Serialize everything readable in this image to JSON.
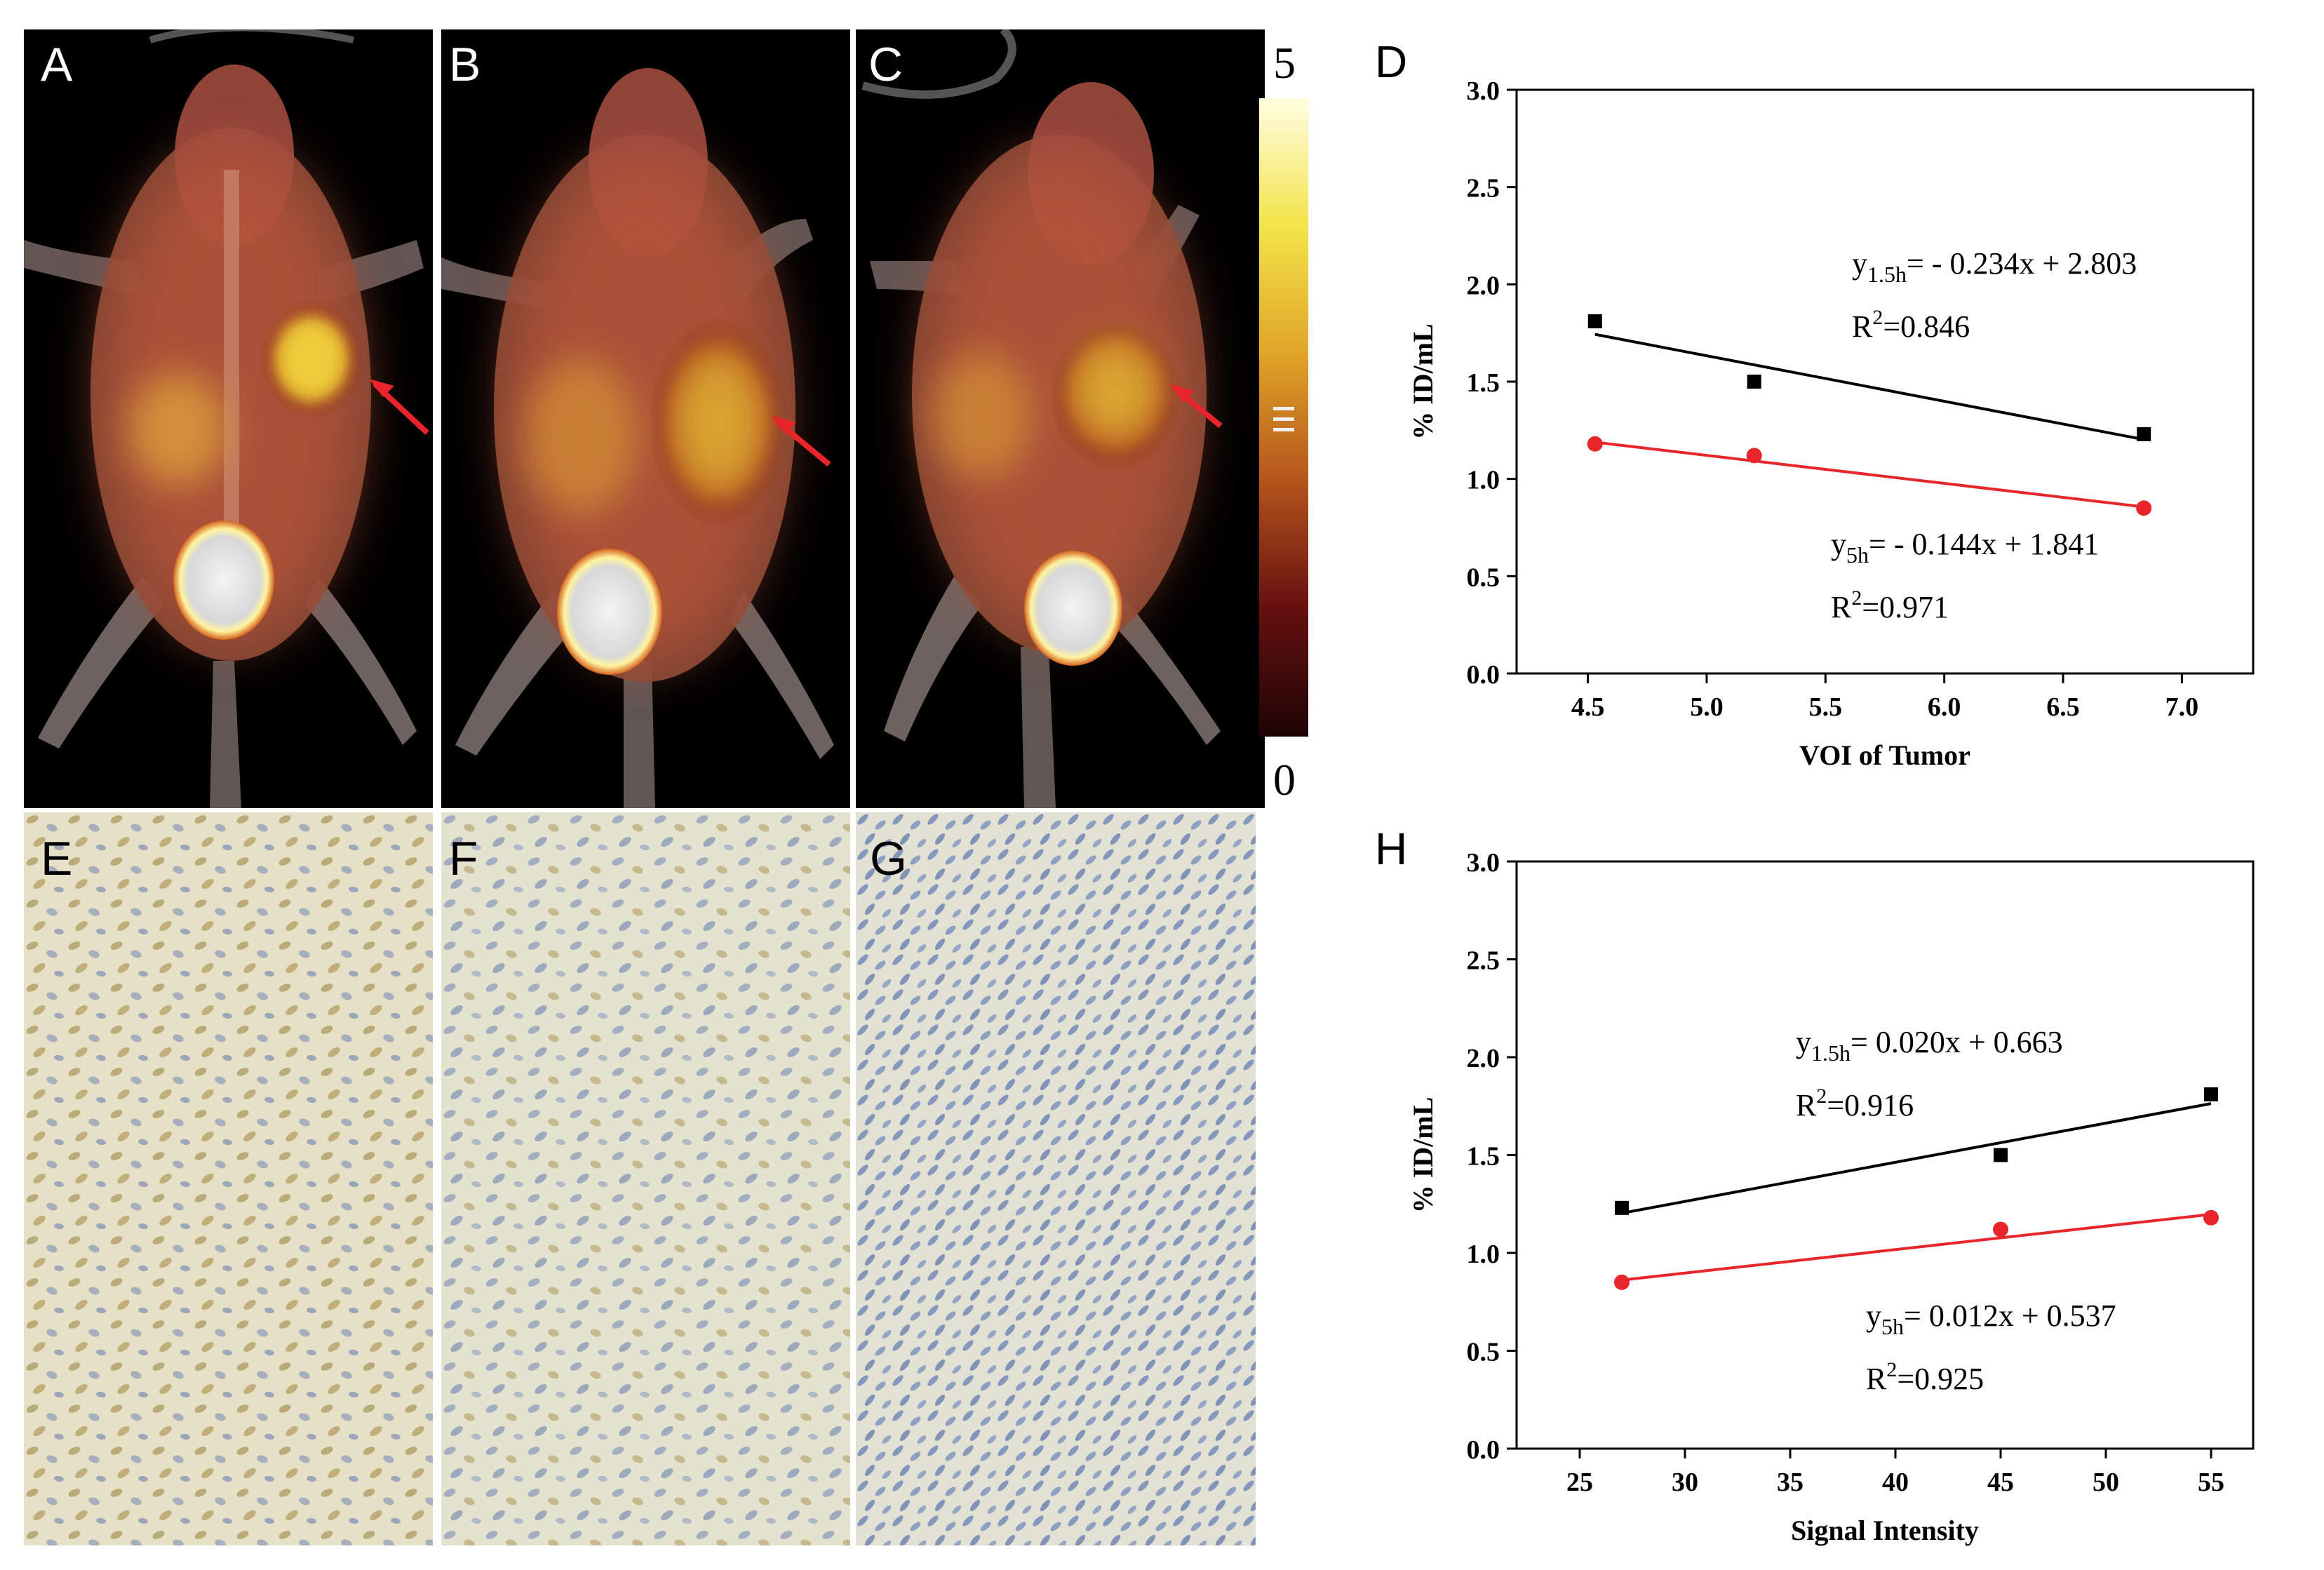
{
  "figure": {
    "panels": {
      "A": {
        "label": "A",
        "type": "PET/CT image",
        "arrow_color": "#e8252b"
      },
      "B": {
        "label": "B",
        "type": "PET/CT image",
        "arrow_color": "#e8252b"
      },
      "C": {
        "label": "C",
        "type": "PET/CT image",
        "arrow_color": "#e8252b"
      },
      "E": {
        "label": "E",
        "type": "immunohistochemistry micrograph"
      },
      "F": {
        "label": "F",
        "type": "immunohistochemistry micrograph"
      },
      "G": {
        "label": "G",
        "type": "immunohistochemistry micrograph"
      }
    },
    "colorbar": {
      "max_label": "5",
      "min_label": "0",
      "colors": [
        "#fffde0",
        "#f3e44a",
        "#e0a428",
        "#b4541b",
        "#651010",
        "#1e0404"
      ]
    }
  },
  "chart_data": [
    {
      "panel": "D",
      "label": "D",
      "type": "scatter",
      "xlabel": "VOI of Tumor",
      "ylabel": "% ID/mL",
      "xlim": [
        4.2,
        7.3
      ],
      "ylim": [
        0.0,
        3.0
      ],
      "xticks": [
        "4.5",
        "5.0",
        "5.5",
        "6.0",
        "6.5",
        "7.0"
      ],
      "yticks": [
        "0.0",
        "0.5",
        "1.0",
        "1.5",
        "2.0",
        "2.5",
        "3.0"
      ],
      "series": [
        {
          "key": "1.5h",
          "color": "#000000",
          "marker": "square",
          "points": [
            {
              "x": 4.53,
              "y": 1.81
            },
            {
              "x": 5.2,
              "y": 1.5
            },
            {
              "x": 6.84,
              "y": 1.23
            }
          ],
          "fit": {
            "slope": -0.234,
            "intercept": 2.803
          },
          "equation": {
            "y": "y",
            "sub": "1.5h",
            "rhs": "= - 0.234x + 2.803",
            "r2_main": "R",
            "r2_sup": "2",
            "r2_value": "=0.846"
          }
        },
        {
          "key": "5h",
          "color": "#e8252b",
          "marker": "circle",
          "points": [
            {
              "x": 4.53,
              "y": 1.18
            },
            {
              "x": 5.2,
              "y": 1.12
            },
            {
              "x": 6.84,
              "y": 0.85
            }
          ],
          "fit": {
            "slope": -0.144,
            "intercept": 1.841
          },
          "equation": {
            "y": "y",
            "sub": "5h",
            "rhs": "= - 0.144x + 1.841",
            "r2_main": "R",
            "r2_sup": "2",
            "r2_value": "=0.971"
          }
        }
      ]
    },
    {
      "panel": "H",
      "label": "H",
      "type": "scatter",
      "xlabel": "Signal Intensity",
      "ylabel": "% ID/mL",
      "xlim": [
        22,
        57
      ],
      "ylim": [
        0.0,
        3.0
      ],
      "xticks": [
        "25",
        "30",
        "35",
        "40",
        "45",
        "50",
        "55"
      ],
      "yticks": [
        "0.0",
        "0.5",
        "1.0",
        "1.5",
        "2.0",
        "2.5",
        "3.0"
      ],
      "series": [
        {
          "key": "1.5h",
          "color": "#000000",
          "marker": "square",
          "points": [
            {
              "x": 27,
              "y": 1.23
            },
            {
              "x": 45,
              "y": 1.5
            },
            {
              "x": 55,
              "y": 1.81
            }
          ],
          "fit": {
            "slope": 0.02,
            "intercept": 0.663
          },
          "equation": {
            "y": "y",
            "sub": "1.5h",
            "rhs": "= 0.020x + 0.663",
            "r2_main": "R",
            "r2_sup": "2",
            "r2_value": "=0.916"
          }
        },
        {
          "key": "5h",
          "color": "#e8252b",
          "marker": "circle",
          "points": [
            {
              "x": 27,
              "y": 0.85
            },
            {
              "x": 45,
              "y": 1.12
            },
            {
              "x": 55,
              "y": 1.18
            }
          ],
          "fit": {
            "slope": 0.012,
            "intercept": 0.537
          },
          "equation": {
            "y": "y",
            "sub": "5h",
            "rhs": "= 0.012x + 0.537",
            "r2_main": "R",
            "r2_sup": "2",
            "r2_value": "=0.925"
          }
        }
      ]
    }
  ]
}
